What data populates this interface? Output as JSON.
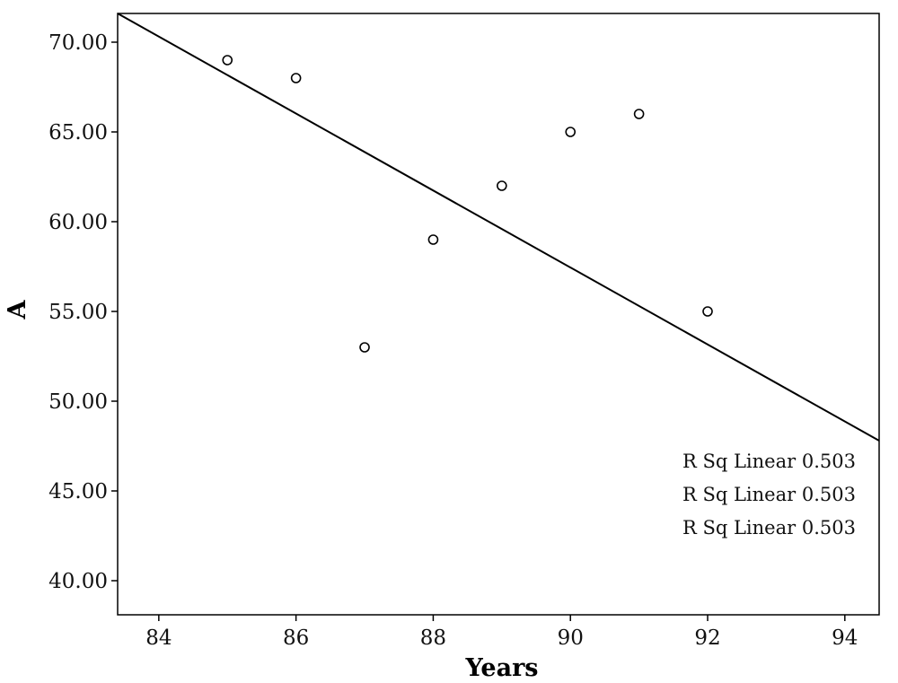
{
  "chart_data": {
    "type": "scatter",
    "title": "",
    "xlabel": "Years",
    "ylabel": "A",
    "xlim": [
      83.4,
      94.5
    ],
    "ylim": [
      38.1,
      71.6
    ],
    "x_ticks": [
      84,
      86,
      88,
      90,
      92,
      94
    ],
    "x_tick_labels": [
      "84",
      "86",
      "88",
      "90",
      "92",
      "94"
    ],
    "y_ticks": [
      40,
      45,
      50,
      55,
      60,
      65,
      70
    ],
    "y_tick_labels": [
      "40.00",
      "45.00",
      "50.00",
      "55.00",
      "60.00",
      "65.00",
      "70.00"
    ],
    "grid": false,
    "points": [
      {
        "x": 85,
        "y": 69
      },
      {
        "x": 86,
        "y": 68
      },
      {
        "x": 87,
        "y": 53
      },
      {
        "x": 88,
        "y": 59
      },
      {
        "x": 89,
        "y": 62
      },
      {
        "x": 90,
        "y": 65
      },
      {
        "x": 91,
        "y": 66
      },
      {
        "x": 92,
        "y": 55
      }
    ],
    "fit_line": {
      "type": "linear",
      "from": [
        83.4,
        71.6
      ],
      "to": [
        94.5,
        47.8
      ]
    },
    "annotations": [
      "R Sq Linear 0.503",
      "R Sq Linear 0.503",
      "R Sq Linear 0.503"
    ],
    "colors": {
      "line": "#000000",
      "marker_edge": "#000000",
      "marker_fill": "#ffffff",
      "text": "#111111"
    }
  }
}
